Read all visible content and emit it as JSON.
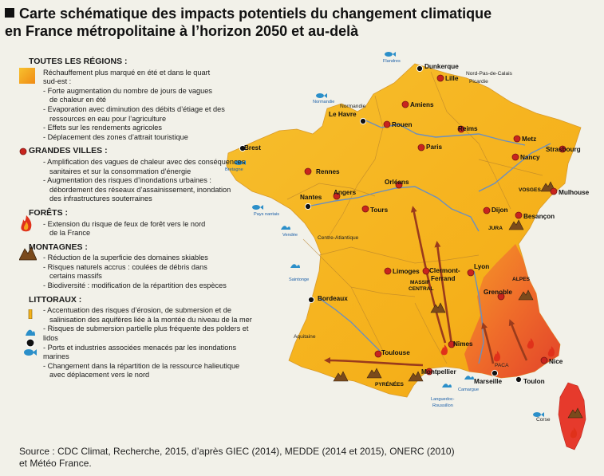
{
  "title": {
    "line1": "Carte schématique des impacts potentiels du changement climatique",
    "line2": "en France métropolitaine à l’horizon 2050 et au-delà"
  },
  "legend": {
    "regions": {
      "heading": "TOUTES LES RÉGIONS :",
      "lines": [
        "Réchauffement plus marqué en été et dans le quart",
        "sud-est :",
        "- Forte augmentation du nombre de jours de vagues",
        "  de chaleur en été",
        "- Evaporation avec diminution des débits d’étiage et des",
        "  ressources en eau pour l’agriculture",
        "- Effets sur les rendements agricoles",
        "- Déplacement des zones d’attrait touristique"
      ]
    },
    "villes": {
      "heading": "GRANDES VILLES :",
      "lines": [
        "- Amplification des vagues de chaleur avec des conséquences",
        "  sanitaires et sur la consommation d’énergie",
        "- Augmentation des risques d’inondations urbaines :",
        "  débordement des réseaux d’assainissement, inondation",
        "  des infrastructures souterraines"
      ]
    },
    "forets": {
      "heading": "FORÊTS :",
      "lines": [
        "- Extension du risque de feux de forêt vers le nord",
        "  de la France"
      ]
    },
    "montagnes": {
      "heading": "MONTAGNES :",
      "lines": [
        "- Réduction de la superficie des domaines skiables",
        "- Risques naturels accrus : coulées de débris dans",
        "  certains massifs",
        "- Biodiversité : modification de la répartition des espèces"
      ]
    },
    "littoraux": {
      "heading": "LITTORAUX :",
      "lines": [
        "- Accentuation des risques d’érosion, de submersion et de",
        "  salinisation des aquifères liée à la montée du niveau de la mer",
        "- Risques de submersion partielle plus fréquente des polders et lidos",
        "- Ports et industries associées menacés par les inondations marines",
        "- Changement dans la répartition de la ressource halieutique",
        "  avec déplacement vers le nord"
      ]
    }
  },
  "map": {
    "cities": [
      {
        "name": "Dunkerque",
        "type": "port"
      },
      {
        "name": "Lille",
        "type": "city"
      },
      {
        "name": "Amiens",
        "type": "city"
      },
      {
        "name": "Le Havre",
        "type": "port"
      },
      {
        "name": "Rouen",
        "type": "city"
      },
      {
        "name": "Reims",
        "type": "city"
      },
      {
        "name": "Metz",
        "type": "city"
      },
      {
        "name": "Strasbourg",
        "type": "city"
      },
      {
        "name": "Nancy",
        "type": "city"
      },
      {
        "name": "Paris",
        "type": "city"
      },
      {
        "name": "Brest",
        "type": "port"
      },
      {
        "name": "Rennes",
        "type": "city"
      },
      {
        "name": "Nantes",
        "type": "port"
      },
      {
        "name": "Angers",
        "type": "city"
      },
      {
        "name": "Orléans",
        "type": "city"
      },
      {
        "name": "Tours",
        "type": "city"
      },
      {
        "name": "Mulhouse",
        "type": "city"
      },
      {
        "name": "Dijon",
        "type": "city"
      },
      {
        "name": "Besançon",
        "type": "city"
      },
      {
        "name": "Limoges",
        "type": "city"
      },
      {
        "name": "Clermont-Ferrand",
        "type": "city"
      },
      {
        "name": "Lyon",
        "type": "city"
      },
      {
        "name": "Grenoble",
        "type": "city"
      },
      {
        "name": "Bordeaux",
        "type": "port"
      },
      {
        "name": "Toulouse",
        "type": "city"
      },
      {
        "name": "Nîmes",
        "type": "city"
      },
      {
        "name": "Montpellier",
        "type": "city"
      },
      {
        "name": "Marseille",
        "type": "port"
      },
      {
        "name": "Toulon",
        "type": "port"
      },
      {
        "name": "Nice",
        "type": "city"
      }
    ],
    "labels": {
      "nord_pdc": "Nord-Pas-de-Calais",
      "picardie": "Picardie",
      "normandie": "Normandie",
      "centre_atlantique": "Centre-Atlantique",
      "aquitaine": "Aquitaine",
      "paca": "PACA",
      "vosges": "VOSGES",
      "jura": "JURA",
      "alpes": "ALPES",
      "massif_central_1": "MASSIF",
      "massif_central_2": "CENTRAL",
      "pyrenees": "PYRÉNÉES",
      "corse": "Corse"
    },
    "clermont_1": "Clermont-",
    "clermont_2": "Ferrand",
    "coastal": {
      "flandres": "Flandres",
      "normandie": "Normandie",
      "bretagne": "Bretagne",
      "pays_nantais": "Pays nantais",
      "vendee": "Vendée",
      "saintonge": "Saintonge",
      "languedoc_1": "Languedoc-",
      "languedoc_2": "Roussillon",
      "camargue": "Camargue"
    }
  },
  "colors": {
    "land": "#f5b21a",
    "hot_zone": "#e8532a",
    "corse": "#e63a2c",
    "river": "#6a8fc0",
    "city": "#c8241e",
    "arrow": "#9a3b1c"
  },
  "source": {
    "line1": "Source : CDC Climat, Recherche, 2015, d’après GIEC (2014), MEDDE (2014 et 2015), ONERC (2010)",
    "line2": "et Météo France."
  }
}
